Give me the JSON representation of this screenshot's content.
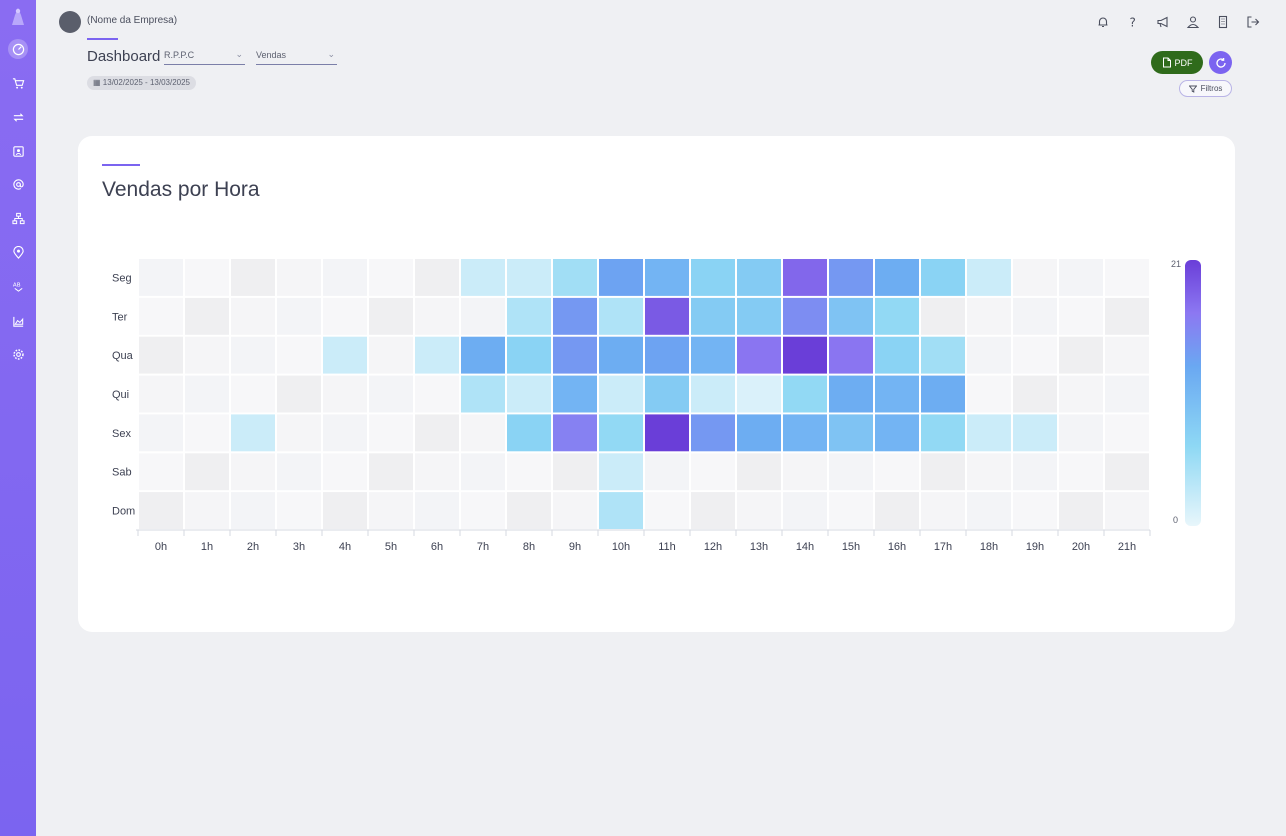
{
  "header": {
    "company_name": "(Nome da Empresa)",
    "dashboard_title": "Dashboard",
    "select_store": "R.P.P.C",
    "select_metric": "Vendas",
    "date_range": "13/02/2025 - 13/03/2025",
    "pdf_label": "PDF",
    "filters_label": "Filtros"
  },
  "sidebar": {
    "icons": [
      "dashboard-icon",
      "cart-icon",
      "exchange-icon",
      "contacts-icon",
      "at-icon",
      "network-icon",
      "location-icon",
      "ab-test-icon",
      "chart-area-icon",
      "settings-icon"
    ]
  },
  "top_icons": [
    "bell-icon",
    "help-icon",
    "megaphone-icon",
    "user-icon",
    "building-icon",
    "logout-icon"
  ],
  "colors": {
    "accent": "#7b64f0",
    "pdf_button": "#2f6b1b",
    "scale_low": "#e8f6fb",
    "scale_mid": "#6aa8f2",
    "scale_high": "#6a3ed8"
  },
  "card": {
    "title": "Vendas por Hora"
  },
  "chart_data": {
    "type": "heatmap",
    "title": "Vendas por Hora",
    "x": [
      "0h",
      "1h",
      "2h",
      "3h",
      "4h",
      "5h",
      "6h",
      "7h",
      "8h",
      "9h",
      "10h",
      "11h",
      "12h",
      "13h",
      "14h",
      "15h",
      "16h",
      "17h",
      "18h",
      "19h",
      "20h",
      "21h"
    ],
    "y": [
      "Seg",
      "Ter",
      "Qua",
      "Qui",
      "Sex",
      "Sab",
      "Dom"
    ],
    "values": [
      [
        0,
        0,
        0,
        0,
        0,
        0,
        0,
        2,
        2,
        5,
        13,
        11,
        7,
        8,
        18,
        14,
        12,
        7,
        2,
        0,
        0,
        0
      ],
      [
        0,
        0,
        0,
        0,
        0,
        0,
        0,
        0,
        4,
        14,
        4,
        19,
        8,
        8,
        15,
        9,
        6,
        0,
        0,
        0,
        0,
        0
      ],
      [
        0,
        0,
        0,
        0,
        2,
        0,
        2,
        12,
        7,
        14,
        12,
        13,
        11,
        17,
        21,
        17,
        7,
        5,
        0,
        0,
        0,
        0
      ],
      [
        0,
        0,
        0,
        0,
        0,
        0,
        0,
        4,
        2,
        11,
        2,
        8,
        2,
        1,
        6,
        12,
        11,
        12,
        0,
        0,
        0,
        0
      ],
      [
        0,
        0,
        2,
        0,
        0,
        0,
        0,
        0,
        7,
        16,
        6,
        21,
        14,
        12,
        11,
        9,
        11,
        6,
        2,
        2,
        0,
        0
      ],
      [
        0,
        0,
        0,
        0,
        0,
        0,
        0,
        0,
        0,
        0,
        2,
        0,
        0,
        0,
        0,
        0,
        0,
        0,
        0,
        0,
        0,
        0
      ],
      [
        0,
        0,
        0,
        0,
        0,
        0,
        0,
        0,
        0,
        0,
        4,
        0,
        0,
        0,
        0,
        0,
        0,
        0,
        0,
        0,
        0,
        0
      ]
    ],
    "scale_min": 0,
    "scale_max": 21,
    "scale_min_label": "0",
    "scale_max_label": "21",
    "legend_position": "right"
  }
}
